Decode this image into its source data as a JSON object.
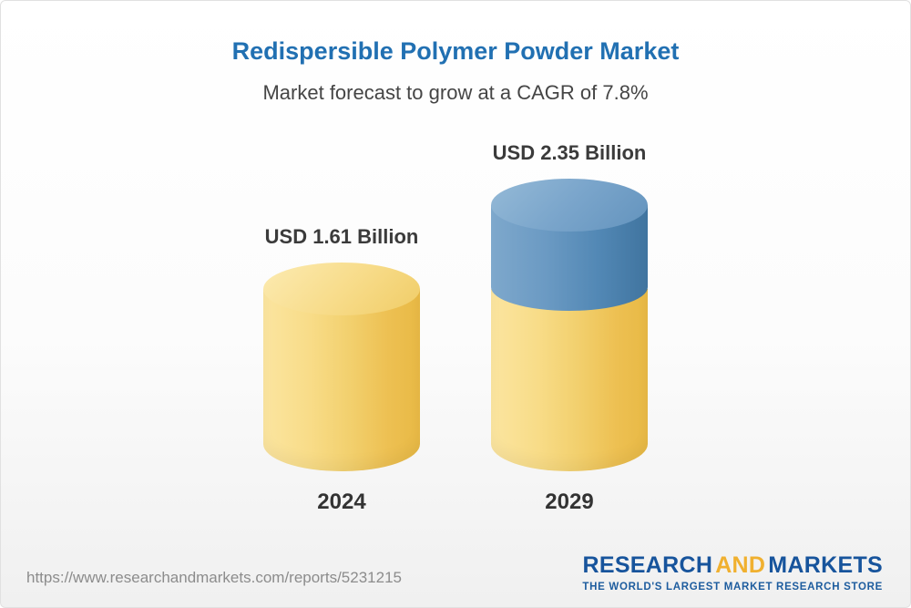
{
  "header": {
    "title": "Redispersible Polymer Powder Market",
    "subtitle": "Market forecast to grow at a CAGR of 7.8%"
  },
  "chart_data": {
    "type": "bar",
    "title": "Redispersible Polymer Powder Market",
    "subtitle": "Market forecast to grow at a CAGR of 7.8%",
    "cagr_percent": 7.8,
    "unit": "USD Billion",
    "categories": [
      "2024",
      "2029"
    ],
    "values": [
      1.61,
      2.35
    ],
    "value_labels": [
      "USD 1.61 Billion",
      "USD 2.35 Billion"
    ],
    "bars": [
      {
        "category": "2024",
        "label": "USD 1.61 Billion",
        "total": 1.61,
        "segments": [
          {
            "name": "base",
            "value": 1.61,
            "color": "#f2d06e"
          }
        ]
      },
      {
        "category": "2029",
        "label": "USD 2.35 Billion",
        "total": 2.35,
        "segments": [
          {
            "name": "base",
            "value": 1.61,
            "color": "#f2d06e"
          },
          {
            "name": "growth",
            "value": 0.74,
            "color": "#5187b4"
          }
        ]
      }
    ],
    "colors": {
      "base_cylinder": "#f2d06e",
      "growth_cylinder": "#5187b4",
      "title_text": "#2170b2",
      "label_text": "#3b3b3b"
    },
    "legend_position": "none",
    "grid": false
  },
  "footer": {
    "url": "https://www.researchandmarkets.com/reports/5231215",
    "logo": {
      "research": "RESEARCH",
      "and": "AND",
      "markets": "MARKETS",
      "tagline": "THE WORLD'S LARGEST MARKET RESEARCH STORE"
    }
  }
}
